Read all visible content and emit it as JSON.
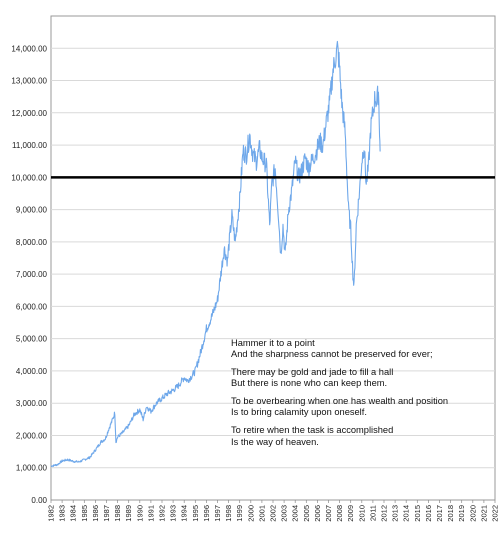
{
  "chart_data": {
    "type": "line",
    "title": "",
    "xlabel": "",
    "ylabel": "",
    "x_tick_labels": [
      "1982",
      "1983",
      "1984",
      "1985",
      "1986",
      "1987",
      "1988",
      "1989",
      "1990",
      "1991",
      "1992",
      "1993",
      "1994",
      "1995",
      "1996",
      "1997",
      "1998",
      "1999",
      "2000",
      "2001",
      "2002",
      "2003",
      "2004",
      "2005",
      "2006",
      "2007",
      "2008",
      "2009",
      "2010",
      "2011",
      "2012",
      "2013",
      "2014",
      "2015",
      "2016",
      "2017",
      "2018",
      "2019",
      "2020",
      "2021",
      "2022"
    ],
    "y_tick_labels": [
      "0.00",
      "1,000.00",
      "2,000.00",
      "3,000.00",
      "4,000.00",
      "5,000.00",
      "6,000.00",
      "7,000.00",
      "8,000.00",
      "9,000.00",
      "10,000.00",
      "11,000.00",
      "12,000.00",
      "13,000.00",
      "14,000.00"
    ],
    "xlim": [
      1982,
      2022
    ],
    "ylim": [
      0,
      15000
    ],
    "grid": "horizontal",
    "reference_line": {
      "y": 10000,
      "color": "#000000"
    },
    "series": [
      {
        "color": "#6fa8ea",
        "points": [
          [
            1982.0,
            1050
          ],
          [
            1982.6,
            1100
          ],
          [
            1983.0,
            1210
          ],
          [
            1983.5,
            1250
          ],
          [
            1984.0,
            1200
          ],
          [
            1984.5,
            1180
          ],
          [
            1985.0,
            1250
          ],
          [
            1985.5,
            1320
          ],
          [
            1986.0,
            1550
          ],
          [
            1986.5,
            1800
          ],
          [
            1986.9,
            1900
          ],
          [
            1987.2,
            2200
          ],
          [
            1987.5,
            2450
          ],
          [
            1987.75,
            2700
          ],
          [
            1987.85,
            1800
          ],
          [
            1988.0,
            1950
          ],
          [
            1988.5,
            2100
          ],
          [
            1989.0,
            2300
          ],
          [
            1989.5,
            2650
          ],
          [
            1990.0,
            2800
          ],
          [
            1990.3,
            2500
          ],
          [
            1990.6,
            2900
          ],
          [
            1991.0,
            2750
          ],
          [
            1991.5,
            3000
          ],
          [
            1992.0,
            3150
          ],
          [
            1992.5,
            3300
          ],
          [
            1993.0,
            3400
          ],
          [
            1993.5,
            3550
          ],
          [
            1994.0,
            3800
          ],
          [
            1994.3,
            3700
          ],
          [
            1994.7,
            3850
          ],
          [
            1995.0,
            4000
          ],
          [
            1995.5,
            4600
          ],
          [
            1996.0,
            5300
          ],
          [
            1996.5,
            5700
          ],
          [
            1997.0,
            6200
          ],
          [
            1997.3,
            7000
          ],
          [
            1997.6,
            7800
          ],
          [
            1997.9,
            7400
          ],
          [
            1998.0,
            7800
          ],
          [
            1998.3,
            8800
          ],
          [
            1998.6,
            8000
          ],
          [
            1998.9,
            9000
          ],
          [
            1999.0,
            9300
          ],
          [
            1999.3,
            10800
          ],
          [
            1999.6,
            10700
          ],
          [
            1999.9,
            11300
          ],
          [
            2000.2,
            10700
          ],
          [
            2000.5,
            10500
          ],
          [
            2000.8,
            10900
          ],
          [
            2001.0,
            10600
          ],
          [
            2001.4,
            10400
          ],
          [
            2001.7,
            8500
          ],
          [
            2001.9,
            9800
          ],
          [
            2002.2,
            10300
          ],
          [
            2002.5,
            8800
          ],
          [
            2002.7,
            7600
          ],
          [
            2002.9,
            8500
          ],
          [
            2003.1,
            7600
          ],
          [
            2003.4,
            9000
          ],
          [
            2003.7,
            9600
          ],
          [
            2004.0,
            10500
          ],
          [
            2004.3,
            10000
          ],
          [
            2004.6,
            10200
          ],
          [
            2004.9,
            10600
          ],
          [
            2005.2,
            10300
          ],
          [
            2005.5,
            10500
          ],
          [
            2005.9,
            10800
          ],
          [
            2006.2,
            11100
          ],
          [
            2006.5,
            11000
          ],
          [
            2006.8,
            11700
          ],
          [
            2007.1,
            12300
          ],
          [
            2007.4,
            13300
          ],
          [
            2007.8,
            14000
          ],
          [
            2007.95,
            13600
          ],
          [
            2008.2,
            12300
          ],
          [
            2008.5,
            11400
          ],
          [
            2008.8,
            9000
          ],
          [
            2009.0,
            8400
          ],
          [
            2009.2,
            7000
          ],
          [
            2009.3,
            6600
          ],
          [
            2009.5,
            8500
          ],
          [
            2009.8,
            9600
          ],
          [
            2010.0,
            10500
          ],
          [
            2010.2,
            11000
          ],
          [
            2010.4,
            9800
          ],
          [
            2010.6,
            10300
          ],
          [
            2010.8,
            11500
          ],
          [
            2011.0,
            12000
          ],
          [
            2011.2,
            12500
          ],
          [
            2011.35,
            12300
          ],
          [
            2011.5,
            12700
          ],
          [
            2011.6,
            11500
          ],
          [
            2011.65,
            10800
          ]
        ]
      }
    ]
  },
  "quote": [
    [
      "Hammer it to a point",
      "And the sharpness cannot be preserved for ever;"
    ],
    [
      "There may be gold and jade to fill a hall",
      "But there is none who can keep them."
    ],
    [
      "To be overbearing when one has wealth and position",
      "Is to bring calamity upon oneself."
    ],
    [
      "To retire when the task is accomplished",
      "Is the way of heaven."
    ]
  ],
  "colors": {
    "series": "#6fa8ea",
    "grid": "#d9d9d9",
    "reference": "#000000",
    "axes": "#888888"
  }
}
